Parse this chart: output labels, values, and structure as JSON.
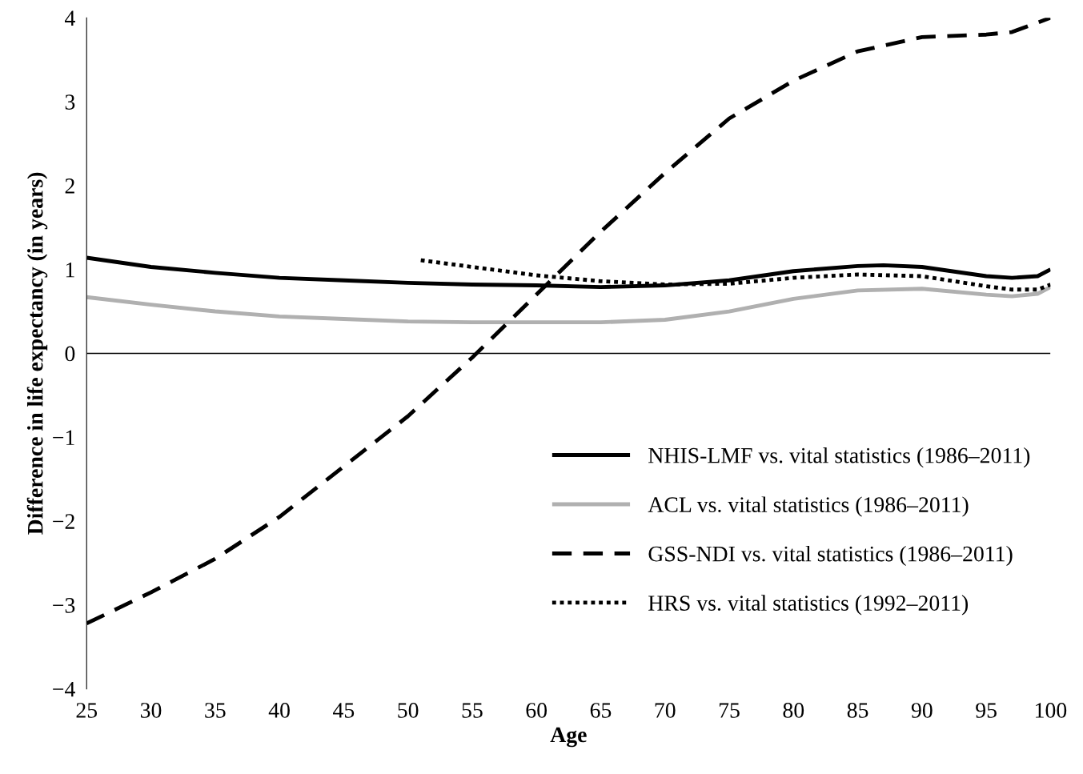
{
  "chart_data": {
    "type": "line",
    "xlabel": "Age",
    "ylabel": "Difference in life expectancy (in years)",
    "xlim": [
      25,
      100
    ],
    "xticks": [
      25,
      30,
      35,
      40,
      45,
      50,
      55,
      60,
      65,
      70,
      75,
      80,
      85,
      90,
      95,
      100
    ],
    "ylim": [
      -4,
      4
    ],
    "yticks": [
      {
        "value": -4,
        "label": "−4"
      },
      {
        "value": -3,
        "label": "−3"
      },
      {
        "value": -2,
        "label": "−2"
      },
      {
        "value": -1,
        "label": "−1"
      },
      0,
      1,
      2,
      3,
      4
    ],
    "grid": false,
    "legend": "bottom right",
    "ref_lines": [
      {
        "axis": "y",
        "value": 0,
        "color": "#000000",
        "line_style": "solid"
      }
    ],
    "series": [
      {
        "name": "NHIS-LMF vs. vital statistics (1986–2011)",
        "color": "#000000",
        "line_style": "solid",
        "x": [
          25,
          30,
          35,
          40,
          45,
          50,
          55,
          60,
          65,
          70,
          75,
          80,
          85,
          87,
          90,
          95,
          97,
          99,
          100
        ],
        "values": [
          1.14,
          1.03,
          0.96,
          0.9,
          0.87,
          0.84,
          0.82,
          0.81,
          0.79,
          0.81,
          0.87,
          0.98,
          1.04,
          1.05,
          1.03,
          0.92,
          0.9,
          0.92,
          1.0
        ]
      },
      {
        "name": "ACL vs. vital statistics (1986–2011)",
        "color": "#b0b0b0",
        "line_style": "solid",
        "x": [
          25,
          30,
          35,
          40,
          45,
          50,
          55,
          60,
          65,
          70,
          75,
          80,
          85,
          90,
          95,
          97,
          99,
          100
        ],
        "values": [
          0.67,
          0.58,
          0.5,
          0.44,
          0.41,
          0.38,
          0.37,
          0.37,
          0.37,
          0.4,
          0.5,
          0.65,
          0.75,
          0.77,
          0.7,
          0.68,
          0.71,
          0.79
        ]
      },
      {
        "name": "GSS-NDI vs. vital statistics (1986–2011)",
        "color": "#000000",
        "line_style": "dashed",
        "x": [
          25,
          30,
          35,
          40,
          45,
          50,
          55,
          60,
          65,
          70,
          75,
          80,
          85,
          90,
          95,
          97,
          100
        ],
        "values": [
          -3.22,
          -2.85,
          -2.45,
          -1.95,
          -1.35,
          -0.75,
          -0.05,
          0.7,
          1.45,
          2.15,
          2.8,
          3.25,
          3.6,
          3.77,
          3.8,
          3.83,
          4.0
        ]
      },
      {
        "name": "HRS vs. vital statistics (1992–2011)",
        "color": "#000000",
        "line_style": "dotted",
        "x": [
          51,
          55,
          60,
          65,
          70,
          75,
          80,
          85,
          90,
          95,
          97,
          99,
          100
        ],
        "values": [
          1.11,
          1.03,
          0.93,
          0.86,
          0.82,
          0.83,
          0.9,
          0.94,
          0.92,
          0.8,
          0.76,
          0.76,
          0.82
        ]
      }
    ]
  }
}
